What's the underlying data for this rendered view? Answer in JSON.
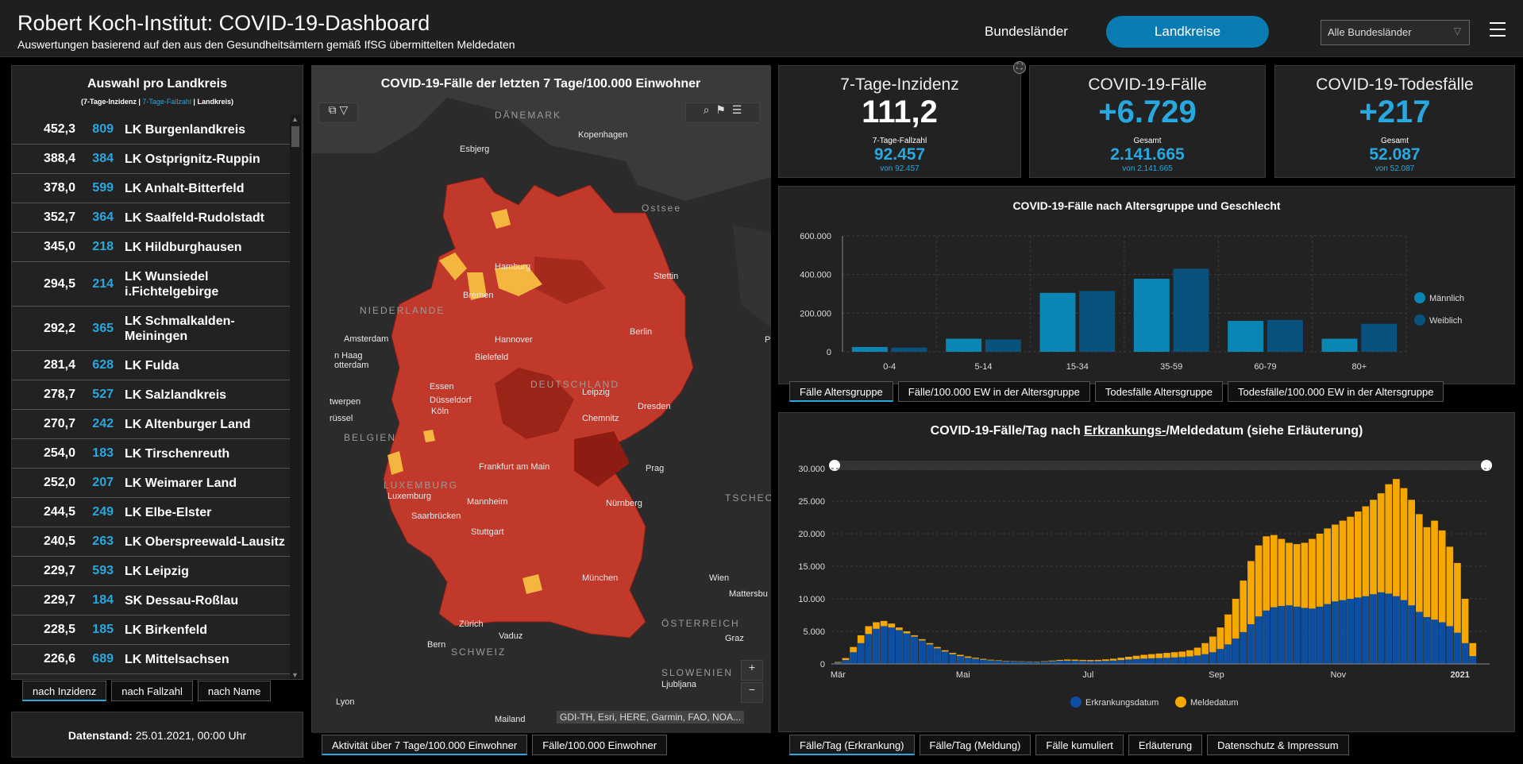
{
  "header": {
    "title": "Robert Koch-Institut: COVID-19-Dashboard",
    "subtitle": "Auswertungen basierend auf den aus den Gesundheitsämtern gemäß IfSG übermittelten Meldedaten",
    "btn_bundeslaender": "Bundesländer",
    "btn_landkreise": "Landkreise",
    "select_value": "Alle Bundesländer"
  },
  "list": {
    "title": "Auswahl pro Landkreis",
    "sub_a": "(7-Tage-Inzidenz | ",
    "sub_b": "7-Tage-Fallzahl",
    "sub_c": " | Landkreis)",
    "rows": [
      {
        "inz": "452,3",
        "fz": "809",
        "name": "LK Burgenlandkreis"
      },
      {
        "inz": "388,4",
        "fz": "384",
        "name": "LK Ostprignitz-Ruppin"
      },
      {
        "inz": "378,0",
        "fz": "599",
        "name": "LK Anhalt-Bitterfeld"
      },
      {
        "inz": "352,7",
        "fz": "364",
        "name": "LK Saalfeld-Rudolstadt"
      },
      {
        "inz": "345,0",
        "fz": "218",
        "name": "LK Hildburghausen"
      },
      {
        "inz": "294,5",
        "fz": "214",
        "name": "LK Wunsiedel i.Fichtelgebirge"
      },
      {
        "inz": "292,2",
        "fz": "365",
        "name": "LK Schmalkalden-Meiningen"
      },
      {
        "inz": "281,4",
        "fz": "628",
        "name": "LK Fulda"
      },
      {
        "inz": "278,7",
        "fz": "527",
        "name": "LK Salzlandkreis"
      },
      {
        "inz": "270,7",
        "fz": "242",
        "name": "LK Altenburger Land"
      },
      {
        "inz": "254,0",
        "fz": "183",
        "name": "LK Tirschenreuth"
      },
      {
        "inz": "252,0",
        "fz": "207",
        "name": "LK Weimarer Land"
      },
      {
        "inz": "244,5",
        "fz": "249",
        "name": "LK Elbe-Elster"
      },
      {
        "inz": "240,5",
        "fz": "263",
        "name": "LK Oberspreewald-Lausitz"
      },
      {
        "inz": "229,7",
        "fz": "593",
        "name": "LK Leipzig"
      },
      {
        "inz": "229,7",
        "fz": "184",
        "name": "SK Dessau-Roßlau"
      },
      {
        "inz": "228,5",
        "fz": "185",
        "name": "LK Birkenfeld"
      },
      {
        "inz": "226,6",
        "fz": "689",
        "name": "LK Mittelsachsen"
      }
    ],
    "tabs": [
      "nach Inzidenz",
      "nach Fallzahl",
      "nach Name"
    ]
  },
  "datenstand": {
    "label": "Datenstand:",
    "value": " 25.01.2021, 00:00 Uhr"
  },
  "map": {
    "title": "COVID-19-Fälle der letzten 7 Tage/100.000 Einwohner",
    "attribution": "GDI-TH, Esri, HERE, Garmin, FAO, NOA...",
    "zoom_in": "+",
    "zoom_out": "−",
    "places": [
      {
        "t": "DÄNEMARK",
        "k": "country"
      },
      {
        "t": "Kopenhagen",
        "k": "city"
      },
      {
        "t": "Esbjerg",
        "k": "city"
      },
      {
        "t": "Ostsee",
        "k": "country"
      },
      {
        "t": "Hamburg",
        "k": "city"
      },
      {
        "t": "Stettin",
        "k": "city"
      },
      {
        "t": "Bremen",
        "k": "city"
      },
      {
        "t": "NIEDERLANDE",
        "k": "country"
      },
      {
        "t": "Amsterdam",
        "k": "city"
      },
      {
        "t": "Hannover",
        "k": "city"
      },
      {
        "t": "Berlin",
        "k": "city"
      },
      {
        "t": "n Haag",
        "k": "city"
      },
      {
        "t": "otterdam",
        "k": "city"
      },
      {
        "t": "Bielefeld",
        "k": "city"
      },
      {
        "t": "P",
        "k": "city"
      },
      {
        "t": "DEUTSCHLAND",
        "k": "country"
      },
      {
        "t": "Essen",
        "k": "city"
      },
      {
        "t": "Düsseldorf",
        "k": "city"
      },
      {
        "t": "Leipzig",
        "k": "city"
      },
      {
        "t": "twerpen",
        "k": "city"
      },
      {
        "t": "Köln",
        "k": "city"
      },
      {
        "t": "Dresden",
        "k": "city"
      },
      {
        "t": "rüssel",
        "k": "city"
      },
      {
        "t": "Chemnitz",
        "k": "city"
      },
      {
        "t": "BELGIEN",
        "k": "country"
      },
      {
        "t": "Frankfurt am Main",
        "k": "city"
      },
      {
        "t": "Prag",
        "k": "city"
      },
      {
        "t": "LUXEMBURG",
        "k": "country"
      },
      {
        "t": "Luxemburg",
        "k": "city"
      },
      {
        "t": "TSCHECHIEN",
        "k": "country"
      },
      {
        "t": "Mannheim",
        "k": "city"
      },
      {
        "t": "Nürnberg",
        "k": "city"
      },
      {
        "t": "Saarbrücken",
        "k": "city"
      },
      {
        "t": "Stuttgart",
        "k": "city"
      },
      {
        "t": "Wien",
        "k": "city"
      },
      {
        "t": "München",
        "k": "city"
      },
      {
        "t": "Mattersbu",
        "k": "city"
      },
      {
        "t": "Zürich",
        "k": "city"
      },
      {
        "t": "ÖSTERREICH",
        "k": "country"
      },
      {
        "t": "Vaduz",
        "k": "city"
      },
      {
        "t": "Graz",
        "k": "city"
      },
      {
        "t": "Bern",
        "k": "city"
      },
      {
        "t": "SCHWEIZ",
        "k": "country"
      },
      {
        "t": "SLOWENIEN",
        "k": "country"
      },
      {
        "t": "Ljubljana",
        "k": "city"
      },
      {
        "t": "Lyon",
        "k": "city"
      },
      {
        "t": "Mailand",
        "k": "city"
      }
    ],
    "tabs": [
      "Aktivität über 7 Tage/100.000 Einwohner",
      "Fälle/100.000 Einwohner"
    ]
  },
  "kpis": [
    {
      "title": "7-Tage-Inzidenz",
      "value": "111,2",
      "label": "7-Tage-Fallzahl",
      "value2": "92.457",
      "sub": "von 92.457"
    },
    {
      "title": "COVID-19-Fälle",
      "value": "+6.729",
      "label": "Gesamt",
      "value2": "2.141.665",
      "sub": "von 2.141.665"
    },
    {
      "title": "COVID-19-Todesfälle",
      "value": "+217",
      "label": "Gesamt",
      "value2": "52.087",
      "sub": "von 52.087"
    }
  ],
  "colors": {
    "accent": "#29a8e0",
    "maennlich": "#0a86b4",
    "weiblich": "#08527d",
    "erkrankung": "#0b4ea2",
    "melde": "#f6a800"
  },
  "age_tabs": [
    "Fälle Altersgruppe",
    "Fälle/100.000 EW in der Altersgruppe",
    "Todesfälle Altersgruppe",
    "Todesfälle/100.000 EW in der Altersgruppe"
  ],
  "day_tabs": [
    "Fälle/Tag (Erkrankung)",
    "Fälle/Tag (Meldung)",
    "Fälle kumuliert",
    "Erläuterung",
    "Datenschutz & Impressum"
  ],
  "chart_data": [
    {
      "type": "bar",
      "title": "COVID-19-Fälle nach Altersgruppe und Geschlecht",
      "categories": [
        "0-4",
        "5-14",
        "15-34",
        "35-59",
        "60-79",
        "80+"
      ],
      "series": [
        {
          "name": "Männlich",
          "values": [
            25000,
            68000,
            305000,
            378000,
            160000,
            68000
          ]
        },
        {
          "name": "Weiblich",
          "values": [
            22000,
            64000,
            315000,
            430000,
            165000,
            145000
          ]
        }
      ],
      "ylim": [
        0,
        600000
      ],
      "yticks": [
        "0",
        "200.000",
        "400.000",
        "600.000"
      ],
      "legend": "right",
      "grid": true
    },
    {
      "type": "bar",
      "title_a": "COVID-19-Fälle/Tag nach ",
      "title_b": "Erkrankungs-",
      "title_c": "/Meldedatum (siehe Erläuterung)",
      "ylim": [
        0,
        30000
      ],
      "yticks": [
        "0",
        "5.000",
        "10.000",
        "15.000",
        "20.000",
        "25.000",
        "30.000"
      ],
      "xticks": [
        "Mär",
        "Mai",
        "Jul",
        "Sep",
        "Nov",
        "2021"
      ],
      "legend": "bottom",
      "series": [
        {
          "name": "Erkrankungsdatum",
          "values": [
            200,
            600,
            1800,
            3200,
            4600,
            5400,
            5800,
            5600,
            5200,
            4700,
            4200,
            3600,
            3000,
            2400,
            1900,
            1500,
            1200,
            950,
            800,
            650,
            550,
            480,
            420,
            380,
            350,
            330,
            320,
            350,
            420,
            480,
            500,
            480,
            450,
            420,
            430,
            470,
            520,
            600,
            680,
            760,
            820,
            860,
            900,
            950,
            1000,
            1060,
            1150,
            1300,
            1500,
            1800,
            2300,
            3000,
            3900,
            4900,
            6100,
            7300,
            8200,
            8700,
            8900,
            9000,
            8800,
            8600,
            8500,
            8800,
            9200,
            9600,
            9800,
            10000,
            10200,
            10400,
            10700,
            11000,
            10800,
            10400,
            9800,
            9000,
            8000,
            7200,
            6800,
            6400,
            5800,
            4800,
            3200,
            1200
          ]
        },
        {
          "name": "Meldedatum",
          "values": [
            300,
            900,
            2600,
            4400,
            5800,
            6400,
            6600,
            6200,
            5600,
            5000,
            4400,
            3800,
            3200,
            2600,
            2100,
            1700,
            1400,
            1150,
            950,
            780,
            650,
            560,
            480,
            430,
            400,
            380,
            370,
            420,
            520,
            620,
            680,
            660,
            620,
            600,
            620,
            700,
            800,
            950,
            1100,
            1250,
            1400,
            1500,
            1600,
            1700,
            1800,
            1900,
            2100,
            2500,
            3200,
            4200,
            5600,
            7600,
            10000,
            12800,
            15800,
            18200,
            19600,
            19800,
            19200,
            18600,
            18400,
            18600,
            19200,
            20000,
            20800,
            21400,
            22000,
            22600,
            23400,
            24200,
            25200,
            26200,
            27600,
            28400,
            27000,
            25200,
            23000,
            21000,
            22000,
            20500,
            18000,
            15500,
            10000,
            3200
          ]
        }
      ]
    }
  ]
}
